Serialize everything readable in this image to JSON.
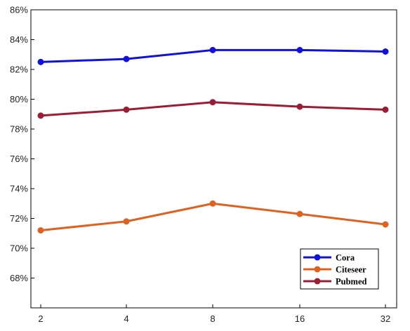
{
  "chart_data": {
    "type": "line",
    "x": [
      2,
      4,
      8,
      16,
      32
    ],
    "x_tick_labels": [
      "2",
      "4",
      "8",
      "16",
      "32"
    ],
    "x_scale": "log2",
    "ylim": [
      66,
      86
    ],
    "y_ticks": [
      68,
      70,
      72,
      74,
      76,
      78,
      80,
      82,
      84,
      86
    ],
    "y_tick_labels": [
      "68%",
      "70%",
      "72%",
      "74%",
      "76%",
      "78%",
      "80%",
      "82%",
      "84%",
      "86%"
    ],
    "grid": false,
    "legend_position": "bottom-right",
    "series": [
      {
        "name": "Cora",
        "color": "#1010e0",
        "values": [
          82.5,
          82.7,
          83.3,
          83.3,
          83.2
        ]
      },
      {
        "name": "Citeseer",
        "color": "#e0601e",
        "values": [
          71.2,
          71.8,
          73.0,
          72.3,
          71.6
        ]
      },
      {
        "name": "Pubmed",
        "color": "#9c1c34",
        "values": [
          78.9,
          79.3,
          79.8,
          79.5,
          79.3
        ]
      }
    ]
  }
}
